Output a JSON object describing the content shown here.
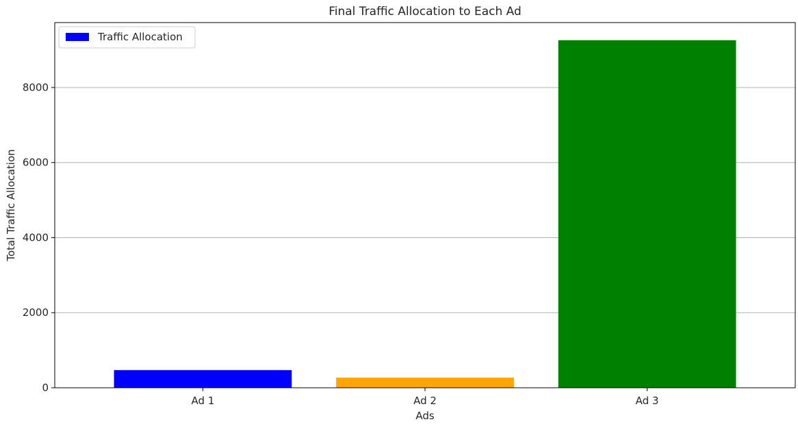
{
  "chart_data": {
    "type": "bar",
    "title": "Final Traffic Allocation to Each Ad",
    "xlabel": "Ads",
    "ylabel": "Total Traffic Allocation",
    "categories": [
      "Ad 1",
      "Ad 2",
      "Ad 3"
    ],
    "series": [
      {
        "name": "Traffic Allocation",
        "values": [
          470,
          270,
          9260
        ]
      }
    ],
    "bar_colors": [
      "#0000ff",
      "#ffa500",
      "#008000"
    ],
    "ylim": [
      0,
      9730
    ],
    "yticks": [
      0,
      2000,
      4000,
      6000,
      8000
    ],
    "ytick_labels": [
      "0",
      "2000",
      "4000",
      "6000",
      "8000"
    ],
    "grid": "horizontal",
    "legend_position": "top-left",
    "legend_swatch_color": "#0000ff"
  }
}
